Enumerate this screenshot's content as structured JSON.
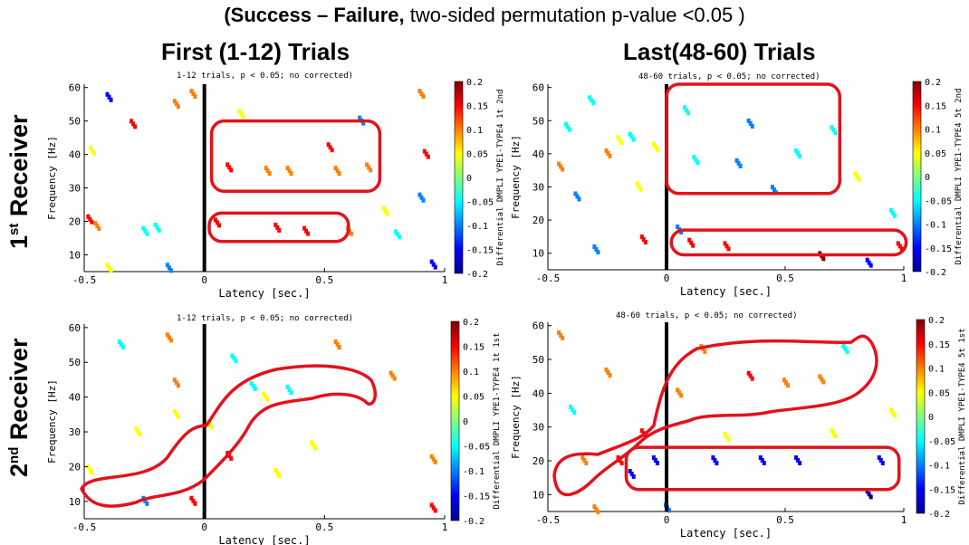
{
  "header": {
    "title_bold": "(Success – Failure,",
    "title_rest": " two-sided permutation p-value <0.05 )"
  },
  "columns": {
    "first": "First (1-12) Trials",
    "last": "Last(48-60) Trials"
  },
  "rows": {
    "first_num": "1",
    "first_sup": "st",
    "first_word": " Receiver",
    "second_num": "2",
    "second_sup": "nd",
    "second_word": " Receiver"
  },
  "colors": {
    "highlight": "#e3121b",
    "onset_line": "#000000",
    "colormap": [
      "#00008f",
      "#0000ff",
      "#0080ff",
      "#00ffff",
      "#80ff80",
      "#ffff00",
      "#ff8000",
      "#ff0000",
      "#800000"
    ]
  },
  "chart_data": [
    {
      "type": "heatmap",
      "panel": "first-trials-1st-receiver",
      "title": "1-12 trials, p < 0.05; no corrected)",
      "xlabel": "Latency [sec.]",
      "ylabel": "Frequency [Hz]",
      "xlim": [
        -0.5,
        1
      ],
      "ylim": [
        5,
        61
      ],
      "xticks": [
        "-0.5",
        "0",
        "0.5",
        "1"
      ],
      "yticks": [
        "10",
        "20",
        "30",
        "40",
        "50",
        "60"
      ],
      "colorbar_label": "Differential DMPLI YPE1-TYPE4 1t 2nd",
      "colorbar_range": [
        -0.2,
        0.2
      ],
      "colorbar_ticks": [
        "0.2",
        "0.15",
        "0.1",
        "0.05",
        "0",
        "-0.05",
        "-0.1",
        "-0.15",
        "-0.2"
      ],
      "grid": false,
      "clusters": [
        {
          "x": -0.48,
          "y": 20.5,
          "v": 0.13
        },
        {
          "x": -0.45,
          "y": 18.5,
          "v": 0.1
        },
        {
          "x": -0.47,
          "y": 41,
          "v": 0.07
        },
        {
          "x": -0.4,
          "y": 6,
          "v": 0.07
        },
        {
          "x": -0.4,
          "y": 57,
          "v": -0.17
        },
        {
          "x": -0.3,
          "y": 49,
          "v": 0.15
        },
        {
          "x": -0.25,
          "y": 17,
          "v": -0.06
        },
        {
          "x": -0.2,
          "y": 18,
          "v": -0.04
        },
        {
          "x": -0.15,
          "y": 6,
          "v": -0.1
        },
        {
          "x": -0.12,
          "y": 55,
          "v": 0.12
        },
        {
          "x": -0.05,
          "y": 58,
          "v": 0.11
        },
        {
          "x": 0.05,
          "y": 19.5,
          "v": 0.15
        },
        {
          "x": 0.1,
          "y": 36,
          "v": 0.13
        },
        {
          "x": 0.15,
          "y": 52,
          "v": 0.07
        },
        {
          "x": 0.26,
          "y": 35,
          "v": 0.11
        },
        {
          "x": 0.3,
          "y": 18,
          "v": 0.15
        },
        {
          "x": 0.35,
          "y": 35,
          "v": 0.12
        },
        {
          "x": 0.42,
          "y": 17,
          "v": 0.16
        },
        {
          "x": 0.52,
          "y": 42,
          "v": 0.14
        },
        {
          "x": 0.55,
          "y": 35,
          "v": 0.08
        },
        {
          "x": 0.6,
          "y": 17,
          "v": 0.1
        },
        {
          "x": 0.65,
          "y": 50,
          "v": -0.1
        },
        {
          "x": 0.68,
          "y": 36,
          "v": 0.1
        },
        {
          "x": 0.75,
          "y": 23,
          "v": 0.06
        },
        {
          "x": 0.8,
          "y": 16,
          "v": -0.05
        },
        {
          "x": 0.9,
          "y": 27,
          "v": -0.1
        },
        {
          "x": 0.92,
          "y": 40,
          "v": 0.15
        },
        {
          "x": 0.95,
          "y": 7,
          "v": -0.14
        },
        {
          "x": 0.9,
          "y": 58,
          "v": 0.1
        }
      ],
      "highlight_boxes": [
        {
          "x0": 0.03,
          "x1": 0.73,
          "y0": 29,
          "y1": 50
        },
        {
          "x0": 0.02,
          "x1": 0.6,
          "y0": 14,
          "y1": 22.5
        }
      ]
    },
    {
      "type": "heatmap",
      "panel": "last-trials-1st-receiver",
      "title": "48-60 trials, p < 0.05; no corrected)",
      "xlabel": "Latency [sec.]",
      "ylabel": "Frequency [Hz]",
      "xlim": [
        -0.5,
        1
      ],
      "ylim": [
        5,
        61
      ],
      "xticks": [
        "-0.5",
        "0",
        "0.5",
        "1"
      ],
      "yticks": [
        "10",
        "20",
        "30",
        "40",
        "50",
        "60"
      ],
      "colorbar_label": "Differential DMPLI YPE1-TYPE4 5t 2nd",
      "colorbar_range": [
        -0.2,
        0.2
      ],
      "colorbar_ticks": [
        "0.2",
        "0.15",
        "0.1",
        "0.05",
        "0",
        "-0.05",
        "-0.1",
        "-0.15",
        "-0.2"
      ],
      "grid": false,
      "clusters": [
        {
          "x": -0.45,
          "y": 36,
          "v": 0.1
        },
        {
          "x": -0.42,
          "y": 48,
          "v": -0.07
        },
        {
          "x": -0.38,
          "y": 27,
          "v": -0.08
        },
        {
          "x": -0.32,
          "y": 56,
          "v": -0.04
        },
        {
          "x": -0.3,
          "y": 11,
          "v": -0.09
        },
        {
          "x": -0.25,
          "y": 40,
          "v": 0.08
        },
        {
          "x": -0.2,
          "y": 44,
          "v": 0.07
        },
        {
          "x": -0.15,
          "y": 45,
          "v": -0.07
        },
        {
          "x": -0.12,
          "y": 30,
          "v": 0.06
        },
        {
          "x": -0.1,
          "y": 14,
          "v": 0.14
        },
        {
          "x": -0.05,
          "y": 42,
          "v": 0.05
        },
        {
          "x": 0.05,
          "y": 17,
          "v": -0.1
        },
        {
          "x": 0.08,
          "y": 53,
          "v": -0.06
        },
        {
          "x": 0.12,
          "y": 38,
          "v": -0.05
        },
        {
          "x": 0.1,
          "y": 13,
          "v": 0.14
        },
        {
          "x": 0.25,
          "y": 12,
          "v": 0.17
        },
        {
          "x": 0.3,
          "y": 37,
          "v": -0.11
        },
        {
          "x": 0.35,
          "y": 49,
          "v": -0.09
        },
        {
          "x": 0.45,
          "y": 29,
          "v": -0.1
        },
        {
          "x": 0.55,
          "y": 40,
          "v": -0.06
        },
        {
          "x": 0.65,
          "y": 9,
          "v": 0.18
        },
        {
          "x": 0.7,
          "y": 47,
          "v": -0.05
        },
        {
          "x": 0.8,
          "y": 33,
          "v": 0.06
        },
        {
          "x": 0.85,
          "y": 7,
          "v": -0.15
        },
        {
          "x": 0.98,
          "y": 12,
          "v": 0.15
        },
        {
          "x": 0.95,
          "y": 22,
          "v": -0.06
        }
      ],
      "highlight_boxes": [
        {
          "x0": 0,
          "x1": 0.73,
          "y0": 28,
          "y1": 61
        },
        {
          "x0": 0.02,
          "x1": 1.01,
          "y0": 9.5,
          "y1": 17
        }
      ]
    },
    {
      "type": "heatmap",
      "panel": "first-trials-2nd-receiver",
      "title": "1-12 trials, p < 0.05; no corrected)",
      "xlabel": "Latency [sec.]",
      "ylabel": "Frequency [Hz]",
      "xlim": [
        -0.5,
        1
      ],
      "ylim": [
        5,
        61
      ],
      "xticks": [
        "-0.5",
        "0",
        "0.5",
        "1"
      ],
      "yticks": [
        "10",
        "20",
        "30",
        "40",
        "50",
        "60"
      ],
      "colorbar_label": "Differential DMPLI YPE1-TYPE4 1t 1st",
      "colorbar_range": [
        -0.2,
        0.2
      ],
      "colorbar_ticks": [
        "0.2",
        "0.15",
        "0.1",
        "0.05",
        "0",
        "-0.05",
        "-0.1",
        "-0.15",
        "-0.2"
      ],
      "grid": false,
      "clusters": [
        {
          "x": -0.48,
          "y": 19,
          "v": 0.07
        },
        {
          "x": -0.35,
          "y": 55,
          "v": -0.06
        },
        {
          "x": -0.28,
          "y": 30,
          "v": 0.06
        },
        {
          "x": -0.25,
          "y": 10,
          "v": -0.12
        },
        {
          "x": -0.15,
          "y": 57,
          "v": 0.12
        },
        {
          "x": -0.12,
          "y": 44,
          "v": 0.1
        },
        {
          "x": -0.12,
          "y": 35,
          "v": 0.06
        },
        {
          "x": -0.05,
          "y": 10,
          "v": 0.17
        },
        {
          "x": 0.02,
          "y": 32,
          "v": 0.05
        },
        {
          "x": 0.1,
          "y": 23,
          "v": 0.14
        },
        {
          "x": 0.12,
          "y": 51,
          "v": -0.05
        },
        {
          "x": 0.2,
          "y": 43,
          "v": -0.04
        },
        {
          "x": 0.25,
          "y": 40,
          "v": 0.03
        },
        {
          "x": 0.3,
          "y": 18,
          "v": 0.06
        },
        {
          "x": 0.35,
          "y": 42,
          "v": -0.03
        },
        {
          "x": 0.45,
          "y": 26,
          "v": 0.07
        },
        {
          "x": 0.55,
          "y": 55,
          "v": 0.08
        },
        {
          "x": 0.78,
          "y": 46,
          "v": 0.12
        },
        {
          "x": 0.95,
          "y": 22,
          "v": 0.1
        },
        {
          "x": 0.95,
          "y": 8,
          "v": 0.15
        }
      ],
      "highlight_boxes": []
    },
    {
      "type": "heatmap",
      "panel": "last-trials-2nd-receiver",
      "title": "48-60 trials, p < 0.05; no corrected)",
      "xlabel": "Latency [sec.]",
      "ylabel": "Frequency [Hz]",
      "xlim": [
        -0.5,
        1
      ],
      "ylim": [
        5,
        61
      ],
      "xticks": [
        "-0.5",
        "0",
        "0.5",
        "1"
      ],
      "yticks": [
        "10",
        "20",
        "30",
        "40",
        "50",
        "60"
      ],
      "colorbar_label": "Differential DMPLI YPE1-TYPE4 5t 1st",
      "colorbar_range": [
        -0.2,
        0.2
      ],
      "colorbar_ticks": [
        "0.2",
        "0.15",
        "0.1",
        "0.05",
        "0",
        "-0.05",
        "-0.1",
        "-0.15",
        "-0.2"
      ],
      "grid": false,
      "clusters": [
        {
          "x": -0.45,
          "y": 57,
          "v": 0.12
        },
        {
          "x": -0.4,
          "y": 35,
          "v": -0.06
        },
        {
          "x": -0.35,
          "y": 20,
          "v": 0.12
        },
        {
          "x": -0.3,
          "y": 5.5,
          "v": 0.1
        },
        {
          "x": -0.25,
          "y": 46,
          "v": 0.11
        },
        {
          "x": -0.2,
          "y": 20,
          "v": 0.15
        },
        {
          "x": -0.15,
          "y": 16,
          "v": -0.13
        },
        {
          "x": -0.1,
          "y": 28,
          "v": 0.13
        },
        {
          "x": -0.05,
          "y": 20,
          "v": -0.16
        },
        {
          "x": 0.0,
          "y": 6,
          "v": -0.12
        },
        {
          "x": 0.05,
          "y": 40,
          "v": 0.1
        },
        {
          "x": 0.15,
          "y": 53,
          "v": 0.1
        },
        {
          "x": 0.2,
          "y": 20,
          "v": -0.17
        },
        {
          "x": 0.25,
          "y": 27,
          "v": 0.06
        },
        {
          "x": 0.35,
          "y": 45,
          "v": 0.15
        },
        {
          "x": 0.4,
          "y": 20,
          "v": -0.14
        },
        {
          "x": 0.5,
          "y": 43,
          "v": 0.12
        },
        {
          "x": 0.55,
          "y": 20,
          "v": -0.15
        },
        {
          "x": 0.65,
          "y": 44,
          "v": 0.12
        },
        {
          "x": 0.7,
          "y": 28,
          "v": 0.05
        },
        {
          "x": 0.75,
          "y": 53,
          "v": -0.05
        },
        {
          "x": 0.9,
          "y": 20,
          "v": -0.15
        },
        {
          "x": 0.85,
          "y": 10,
          "v": -0.18
        },
        {
          "x": 0.95,
          "y": 34,
          "v": 0.06
        }
      ],
      "highlight_boxes": [
        {
          "x0": -0.17,
          "x1": 0.98,
          "y0": 11.5,
          "y1": 24
        }
      ]
    }
  ]
}
